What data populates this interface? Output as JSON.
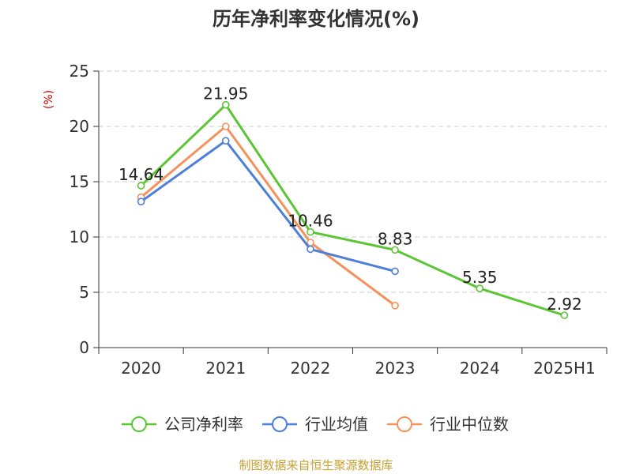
{
  "chart_data": {
    "type": "line",
    "title": "历年净利率变化情况(%)",
    "ylabel": "(%)",
    "categories": [
      "2020",
      "2021",
      "2022",
      "2023",
      "2024",
      "2025H1"
    ],
    "ylim": [
      0,
      25
    ],
    "yticks": [
      0,
      5,
      10,
      15,
      20,
      25
    ],
    "grid": true,
    "legend_position": "bottom",
    "series": [
      {
        "name": "公司净利率",
        "color": "#5cc534",
        "values": [
          14.64,
          21.95,
          10.46,
          8.83,
          5.35,
          2.92
        ],
        "labels": [
          "14.64",
          "21.95",
          "10.46",
          "8.83",
          "5.35",
          "2.92"
        ]
      },
      {
        "name": "行业均值",
        "color": "#4e7fd8",
        "values": [
          13.2,
          18.7,
          8.9,
          6.9,
          null,
          null
        ]
      },
      {
        "name": "行业中位数",
        "color": "#f5915a",
        "values": [
          13.6,
          20.0,
          9.5,
          3.8,
          null,
          null
        ]
      }
    ]
  },
  "source_text": "制图数据来自恒生聚源数据库",
  "colors": {
    "unit": "#cc0000",
    "source": "#c8a032",
    "grid": "#cccccc",
    "axis": "#333333"
  }
}
